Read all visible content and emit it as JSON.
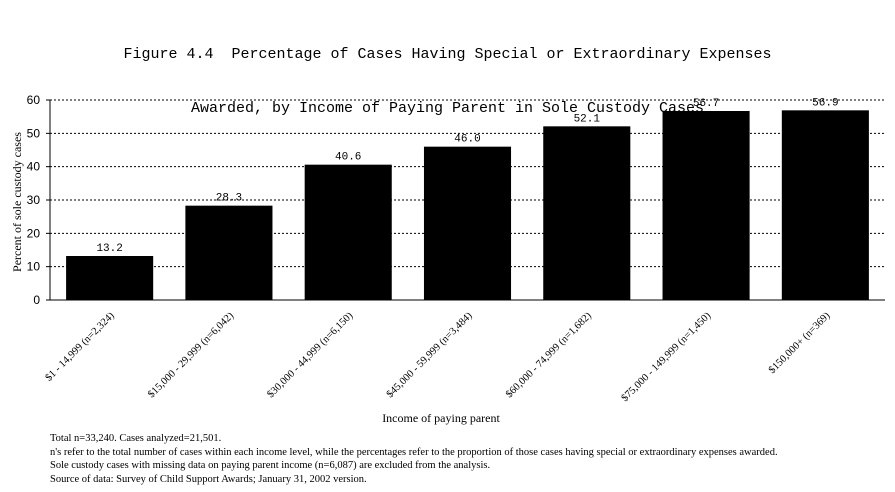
{
  "chart_data": {
    "type": "bar",
    "title_line1": "Figure 4.4  Percentage of Cases Having Special or Extraordinary Expenses",
    "title_line2": "Awarded, by Income of Paying Parent in Sole Custody Cases",
    "xlabel": "Income of paying parent",
    "ylabel": "Percent of sole custody cases",
    "ylim": [
      0,
      60
    ],
    "yticks": [
      0,
      10,
      20,
      30,
      40,
      50,
      60
    ],
    "grid": "horizontal-dotted",
    "categories": [
      "$1 - 14,999 (n=2,324)",
      "$15,000 - 29,999 (n=6,042)",
      "$30,000 - 44,999 (n=6,150)",
      "$45,000 - 59,999 (n=3,484)",
      "$60,000 - 74,999 (n=1,682)",
      "$75,000 - 149,999 (n=1,450)",
      "$150,000+ (n=369)"
    ],
    "values": [
      13.2,
      28.3,
      40.6,
      46.0,
      52.1,
      56.7,
      56.9
    ],
    "data_labels": [
      "13.2",
      "28.3",
      "40.6",
      "46.0",
      "52.1",
      "56.7",
      "56.9"
    ],
    "bar_color": "#000000"
  },
  "notes": [
    "Total n=33,240.  Cases analyzed=21,501.",
    "n's refer to the total number of cases within each income level, while the percentages refer to the proportion of those cases having special or extraordinary expenses awarded.",
    "Sole custody cases with missing data on paying parent income (n=6,087) are excluded from the analysis.",
    "Source of data:  Survey of Child Support Awards; January 31, 2002 version."
  ]
}
